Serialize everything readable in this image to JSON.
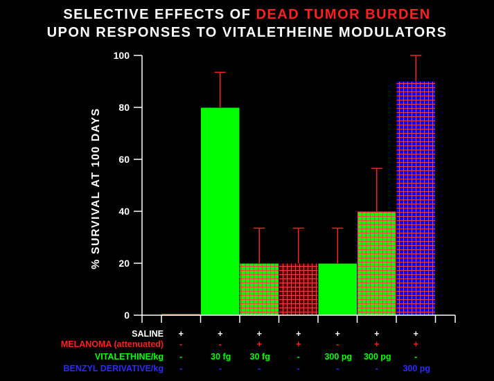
{
  "chart_data": {
    "type": "bar",
    "title_part1": "SELECTIVE EFFECTS OF",
    "title_part2": "DEAD TUMOR BURDEN",
    "subtitle": "UPON RESPONSES TO VITALETHEINE MODULATORS",
    "ylabel": "% SURVIVAL AT 100 DAYS",
    "xlabel": "",
    "ylim": [
      0,
      100
    ],
    "yticks": [
      "0",
      "20",
      "40",
      "60",
      "80",
      "100"
    ],
    "values": [
      0,
      80,
      20,
      20,
      20,
      40,
      90
    ],
    "errors": [
      0,
      13.5,
      13.5,
      13.5,
      13.5,
      16.5,
      10
    ],
    "bar_styles": [
      "red-line",
      "solid-green",
      "green-grid",
      "darkred-grid",
      "solid-green",
      "green-grid",
      "blue-grid"
    ],
    "colors": {
      "green": "#00ff00",
      "red": "#ff2020",
      "darkred": "#5a0000",
      "blue": "#0000ff",
      "gridline": "#ff4040",
      "error": "#ff2020"
    },
    "conditions": [
      {
        "label": "SALINE",
        "color": "#ffffff",
        "values": [
          "+",
          "+",
          "+",
          "+",
          "+",
          "+",
          "+"
        ]
      },
      {
        "label": "MELANOMA (attenuated)",
        "color": "#ff2020",
        "values": [
          "-",
          "-",
          "+",
          "+",
          "-",
          "+",
          "+"
        ]
      },
      {
        "label": "VITALETHINE/kg",
        "color": "#00ff00",
        "values": [
          "-",
          "30 fg",
          "30 fg",
          "-",
          "300 pg",
          "300 pg",
          "-"
        ]
      },
      {
        "label": "BENZYL DERIVATIVE/kg",
        "color": "#2b2bff",
        "values": [
          "-",
          "-",
          "-",
          "-",
          "-",
          "-",
          "300 pg"
        ]
      }
    ]
  }
}
